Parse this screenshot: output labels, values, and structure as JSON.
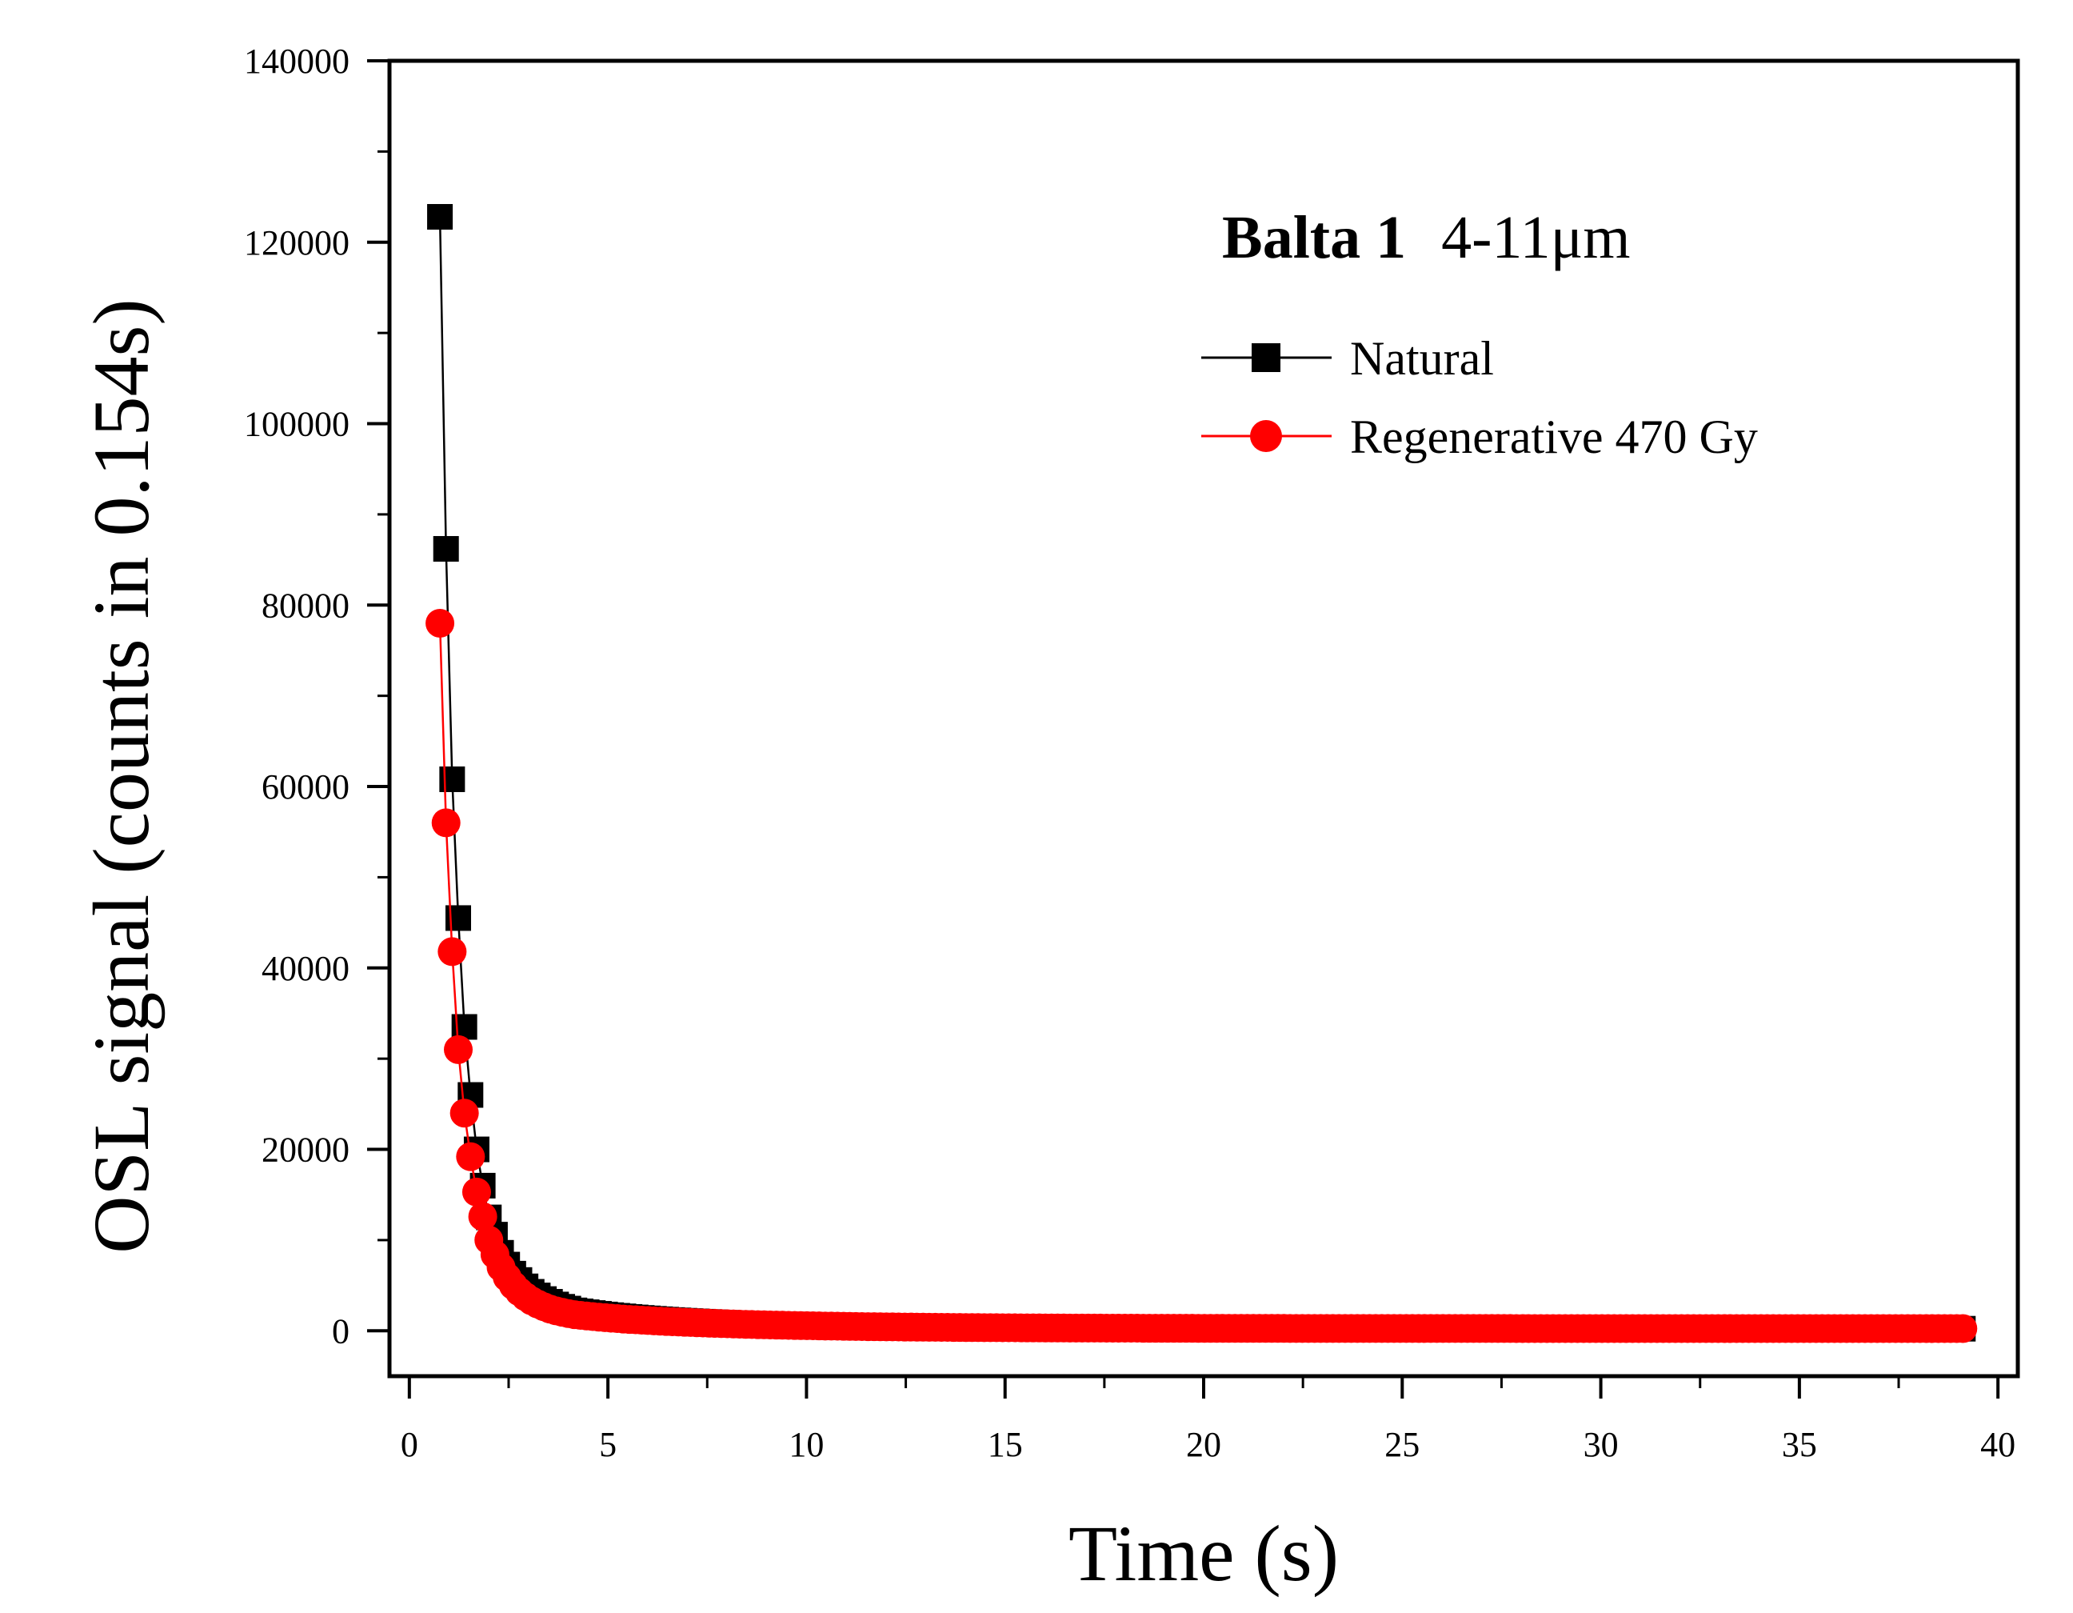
{
  "chart_data": {
    "type": "scatter",
    "xlabel": "Time (s)",
    "ylabel": "OSL signal (counts in 0.154s)",
    "xlim": [
      -0.5,
      40.5
    ],
    "ylim": [
      -5000,
      140000
    ],
    "xticks": [
      0,
      5,
      10,
      15,
      20,
      25,
      30,
      35,
      40
    ],
    "yticks": [
      0,
      20000,
      40000,
      60000,
      80000,
      100000,
      120000,
      140000
    ],
    "xtick_labels": [
      "0",
      "5",
      "10",
      "15",
      "20",
      "25",
      "30",
      "35",
      "40"
    ],
    "ytick_labels": [
      "0",
      "20000",
      "40000",
      "60000",
      "80000",
      "100000",
      "120000",
      "140000"
    ],
    "annotation": {
      "sample": "Balta 1",
      "grain_size": "4-11μm"
    },
    "legend_position": "top-right",
    "decay": {
      "t_start": 0.77,
      "t_step": 0.154,
      "n_points": 250
    },
    "series": [
      {
        "name": "Natural",
        "marker": "square",
        "color": "#000000",
        "points": [
          [
            0.77,
            122800
          ],
          [
            0.924,
            86200
          ],
          [
            1.078,
            60800
          ],
          [
            1.232,
            45500
          ],
          [
            1.386,
            33500
          ],
          [
            1.54,
            26000
          ],
          [
            1.694,
            20000
          ],
          [
            1.848,
            16000
          ],
          [
            2.002,
            12500
          ],
          [
            2.156,
            10600
          ],
          [
            2.31,
            8600
          ],
          [
            2.464,
            7300
          ],
          [
            2.618,
            6300
          ],
          [
            2.772,
            5600
          ],
          [
            2.926,
            4900
          ],
          [
            3.08,
            4300
          ],
          [
            3.234,
            3900
          ],
          [
            3.388,
            3500
          ],
          [
            3.542,
            3200
          ],
          [
            3.696,
            2900
          ],
          [
            3.85,
            2650
          ],
          [
            4.004,
            2450
          ],
          [
            4.158,
            2250
          ]
        ],
        "tail": {
          "end_value": 230,
          "decay_rate": 0.09,
          "amplitude": 2050
        }
      },
      {
        "name": "Regenerative 470 Gy",
        "marker": "circle",
        "color": "#ff0000",
        "points": [
          [
            0.77,
            78000
          ],
          [
            0.924,
            56000
          ],
          [
            1.078,
            41800
          ],
          [
            1.232,
            31000
          ],
          [
            1.386,
            24000
          ],
          [
            1.54,
            19200
          ],
          [
            1.694,
            15300
          ],
          [
            1.848,
            12600
          ],
          [
            2.002,
            10000
          ],
          [
            2.156,
            8400
          ],
          [
            2.31,
            7000
          ],
          [
            2.464,
            5900
          ],
          [
            2.618,
            5000
          ],
          [
            2.772,
            4300
          ],
          [
            2.926,
            3750
          ],
          [
            3.08,
            3300
          ],
          [
            3.234,
            2950
          ],
          [
            3.388,
            2650
          ],
          [
            3.542,
            2400
          ],
          [
            3.696,
            2200
          ],
          [
            3.85,
            2050
          ],
          [
            4.004,
            1900
          ],
          [
            4.158,
            1780
          ]
        ],
        "tail": {
          "end_value": 250,
          "decay_rate": 0.085,
          "amplitude": 1550
        }
      }
    ]
  }
}
